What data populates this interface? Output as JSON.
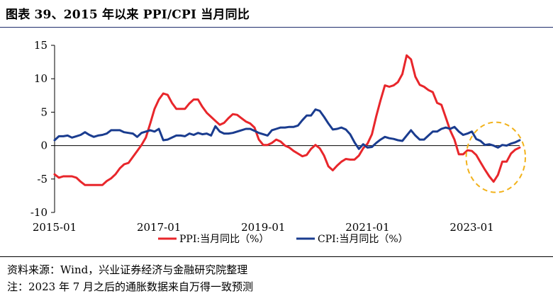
{
  "title": "图表 39、2015 年以来 PPI/CPI 当月同比",
  "chart_data": {
    "type": "line",
    "title": "",
    "xlabel": "",
    "ylabel": "",
    "ylim": [
      -10,
      15
    ],
    "yticks": [
      -10,
      -5,
      0,
      5,
      10,
      15
    ],
    "xlim": [
      "2015-01",
      "2023-12"
    ],
    "xticks": [
      "2015-01",
      "2017-01",
      "2019-01",
      "2021-01",
      "2023-01"
    ],
    "legend_position": "bottom",
    "grid": false,
    "series": [
      {
        "name": "PPI:当月同比（%）",
        "color": "#e8262b",
        "points": [
          [
            "2015-01",
            -4.3
          ],
          [
            "2015-02",
            -4.8
          ],
          [
            "2015-03",
            -4.6
          ],
          [
            "2015-04",
            -4.6
          ],
          [
            "2015-05",
            -4.6
          ],
          [
            "2015-06",
            -4.8
          ],
          [
            "2015-07",
            -5.4
          ],
          [
            "2015-08",
            -5.9
          ],
          [
            "2015-09",
            -5.9
          ],
          [
            "2015-10",
            -5.9
          ],
          [
            "2015-11",
            -5.9
          ],
          [
            "2015-12",
            -5.9
          ],
          [
            "2016-01",
            -5.3
          ],
          [
            "2016-02",
            -4.9
          ],
          [
            "2016-03",
            -4.3
          ],
          [
            "2016-04",
            -3.4
          ],
          [
            "2016-05",
            -2.8
          ],
          [
            "2016-06",
            -2.6
          ],
          [
            "2016-07",
            -1.7
          ],
          [
            "2016-08",
            -0.8
          ],
          [
            "2016-09",
            0.1
          ],
          [
            "2016-10",
            1.2
          ],
          [
            "2016-11",
            3.3
          ],
          [
            "2016-12",
            5.5
          ],
          [
            "2017-01",
            6.9
          ],
          [
            "2017-02",
            7.8
          ],
          [
            "2017-03",
            7.6
          ],
          [
            "2017-04",
            6.4
          ],
          [
            "2017-05",
            5.5
          ],
          [
            "2017-06",
            5.5
          ],
          [
            "2017-07",
            5.5
          ],
          [
            "2017-08",
            6.3
          ],
          [
            "2017-09",
            6.9
          ],
          [
            "2017-10",
            6.9
          ],
          [
            "2017-11",
            5.8
          ],
          [
            "2017-12",
            4.9
          ],
          [
            "2018-01",
            4.3
          ],
          [
            "2018-02",
            3.7
          ],
          [
            "2018-03",
            3.1
          ],
          [
            "2018-04",
            3.4
          ],
          [
            "2018-05",
            4.1
          ],
          [
            "2018-06",
            4.7
          ],
          [
            "2018-07",
            4.6
          ],
          [
            "2018-08",
            4.1
          ],
          [
            "2018-09",
            3.6
          ],
          [
            "2018-10",
            3.3
          ],
          [
            "2018-11",
            2.7
          ],
          [
            "2018-12",
            0.9
          ],
          [
            "2019-01",
            0.1
          ],
          [
            "2019-02",
            0.1
          ],
          [
            "2019-03",
            0.4
          ],
          [
            "2019-04",
            0.9
          ],
          [
            "2019-05",
            0.6
          ],
          [
            "2019-06",
            0.0
          ],
          [
            "2019-07",
            -0.3
          ],
          [
            "2019-08",
            -0.8
          ],
          [
            "2019-09",
            -1.2
          ],
          [
            "2019-10",
            -1.6
          ],
          [
            "2019-11",
            -1.4
          ],
          [
            "2019-12",
            -0.5
          ],
          [
            "2020-01",
            0.1
          ],
          [
            "2020-02",
            -0.4
          ],
          [
            "2020-03",
            -1.5
          ],
          [
            "2020-04",
            -3.1
          ],
          [
            "2020-05",
            -3.7
          ],
          [
            "2020-06",
            -3.0
          ],
          [
            "2020-07",
            -2.4
          ],
          [
            "2020-08",
            -2.0
          ],
          [
            "2020-09",
            -2.1
          ],
          [
            "2020-10",
            -2.1
          ],
          [
            "2020-11",
            -1.5
          ],
          [
            "2020-12",
            -0.4
          ],
          [
            "2021-01",
            0.3
          ],
          [
            "2021-02",
            1.7
          ],
          [
            "2021-03",
            4.4
          ],
          [
            "2021-04",
            6.8
          ],
          [
            "2021-05",
            9.0
          ],
          [
            "2021-06",
            8.8
          ],
          [
            "2021-07",
            9.0
          ],
          [
            "2021-08",
            9.5
          ],
          [
            "2021-09",
            10.7
          ],
          [
            "2021-10",
            13.5
          ],
          [
            "2021-11",
            12.9
          ],
          [
            "2021-12",
            10.3
          ],
          [
            "2022-01",
            9.1
          ],
          [
            "2022-02",
            8.8
          ],
          [
            "2022-03",
            8.3
          ],
          [
            "2022-04",
            8.0
          ],
          [
            "2022-05",
            6.4
          ],
          [
            "2022-06",
            6.1
          ],
          [
            "2022-07",
            4.2
          ],
          [
            "2022-08",
            2.3
          ],
          [
            "2022-09",
            0.9
          ],
          [
            "2022-10",
            -1.3
          ],
          [
            "2022-11",
            -1.3
          ],
          [
            "2022-12",
            -0.7
          ],
          [
            "2023-01",
            -0.8
          ],
          [
            "2023-02",
            -1.4
          ],
          [
            "2023-03",
            -2.5
          ],
          [
            "2023-04",
            -3.6
          ],
          [
            "2023-05",
            -4.6
          ],
          [
            "2023-06",
            -5.4
          ],
          [
            "2023-07",
            -4.4
          ],
          [
            "2023-08",
            -2.4
          ],
          [
            "2023-09",
            -2.4
          ],
          [
            "2023-10",
            -1.2
          ],
          [
            "2023-11",
            -0.6
          ],
          [
            "2023-12",
            -0.3
          ]
        ]
      },
      {
        "name": "CPI:当月同比（%）",
        "color": "#1a3c8f",
        "points": [
          [
            "2015-01",
            0.8
          ],
          [
            "2015-02",
            1.4
          ],
          [
            "2015-03",
            1.4
          ],
          [
            "2015-04",
            1.5
          ],
          [
            "2015-05",
            1.2
          ],
          [
            "2015-06",
            1.4
          ],
          [
            "2015-07",
            1.6
          ],
          [
            "2015-08",
            2.0
          ],
          [
            "2015-09",
            1.6
          ],
          [
            "2015-10",
            1.3
          ],
          [
            "2015-11",
            1.5
          ],
          [
            "2015-12",
            1.6
          ],
          [
            "2016-01",
            1.8
          ],
          [
            "2016-02",
            2.3
          ],
          [
            "2016-03",
            2.3
          ],
          [
            "2016-04",
            2.3
          ],
          [
            "2016-05",
            2.0
          ],
          [
            "2016-06",
            1.9
          ],
          [
            "2016-07",
            1.8
          ],
          [
            "2016-08",
            1.3
          ],
          [
            "2016-09",
            1.9
          ],
          [
            "2016-10",
            2.1
          ],
          [
            "2016-11",
            2.3
          ],
          [
            "2016-12",
            2.1
          ],
          [
            "2017-01",
            2.5
          ],
          [
            "2017-02",
            0.8
          ],
          [
            "2017-03",
            0.9
          ],
          [
            "2017-04",
            1.2
          ],
          [
            "2017-05",
            1.5
          ],
          [
            "2017-06",
            1.5
          ],
          [
            "2017-07",
            1.4
          ],
          [
            "2017-08",
            1.8
          ],
          [
            "2017-09",
            1.6
          ],
          [
            "2017-10",
            1.9
          ],
          [
            "2017-11",
            1.7
          ],
          [
            "2017-12",
            1.8
          ],
          [
            "2018-01",
            1.5
          ],
          [
            "2018-02",
            2.9
          ],
          [
            "2018-03",
            2.1
          ],
          [
            "2018-04",
            1.8
          ],
          [
            "2018-05",
            1.8
          ],
          [
            "2018-06",
            1.9
          ],
          [
            "2018-07",
            2.1
          ],
          [
            "2018-08",
            2.3
          ],
          [
            "2018-09",
            2.5
          ],
          [
            "2018-10",
            2.5
          ],
          [
            "2018-11",
            2.2
          ],
          [
            "2018-12",
            1.9
          ],
          [
            "2019-01",
            1.7
          ],
          [
            "2019-02",
            1.5
          ],
          [
            "2019-03",
            2.3
          ],
          [
            "2019-04",
            2.5
          ],
          [
            "2019-05",
            2.7
          ],
          [
            "2019-06",
            2.7
          ],
          [
            "2019-07",
            2.8
          ],
          [
            "2019-08",
            2.8
          ],
          [
            "2019-09",
            3.0
          ],
          [
            "2019-10",
            3.8
          ],
          [
            "2019-11",
            4.5
          ],
          [
            "2019-12",
            4.5
          ],
          [
            "2020-01",
            5.4
          ],
          [
            "2020-02",
            5.2
          ],
          [
            "2020-03",
            4.3
          ],
          [
            "2020-04",
            3.3
          ],
          [
            "2020-05",
            2.4
          ],
          [
            "2020-06",
            2.5
          ],
          [
            "2020-07",
            2.7
          ],
          [
            "2020-08",
            2.4
          ],
          [
            "2020-09",
            1.7
          ],
          [
            "2020-10",
            0.5
          ],
          [
            "2020-11",
            -0.5
          ],
          [
            "2020-12",
            0.2
          ],
          [
            "2021-01",
            -0.3
          ],
          [
            "2021-02",
            -0.2
          ],
          [
            "2021-03",
            0.4
          ],
          [
            "2021-04",
            0.9
          ],
          [
            "2021-05",
            1.3
          ],
          [
            "2021-06",
            1.1
          ],
          [
            "2021-07",
            1.0
          ],
          [
            "2021-08",
            0.8
          ],
          [
            "2021-09",
            0.7
          ],
          [
            "2021-10",
            1.5
          ],
          [
            "2021-11",
            2.3
          ],
          [
            "2021-12",
            1.5
          ],
          [
            "2022-01",
            0.9
          ],
          [
            "2022-02",
            0.9
          ],
          [
            "2022-03",
            1.5
          ],
          [
            "2022-04",
            2.1
          ],
          [
            "2022-05",
            2.1
          ],
          [
            "2022-06",
            2.5
          ],
          [
            "2022-07",
            2.7
          ],
          [
            "2022-08",
            2.5
          ],
          [
            "2022-09",
            2.8
          ],
          [
            "2022-10",
            2.1
          ],
          [
            "2022-11",
            1.6
          ],
          [
            "2022-12",
            1.8
          ],
          [
            "2023-01",
            2.1
          ],
          [
            "2023-02",
            1.0
          ],
          [
            "2023-03",
            0.7
          ],
          [
            "2023-04",
            0.1
          ],
          [
            "2023-05",
            0.2
          ],
          [
            "2023-06",
            0.0
          ],
          [
            "2023-07",
            -0.3
          ],
          [
            "2023-08",
            0.1
          ],
          [
            "2023-09",
            0.0
          ],
          [
            "2023-10",
            0.3
          ],
          [
            "2023-11",
            0.5
          ],
          [
            "2023-12",
            0.8
          ]
        ]
      }
    ],
    "annotations": [
      {
        "type": "dashed-ellipse",
        "color": "#f2b21b",
        "x_range": [
          "2023-01",
          "2023-12"
        ],
        "y_range": [
          -7,
          3.5
        ]
      }
    ]
  },
  "footer": {
    "source": "资料来源：Wind，兴业证券经济与金融研究院整理",
    "note": "注：2023 年 7 月之后的通胀数据来自万得一致预测"
  }
}
